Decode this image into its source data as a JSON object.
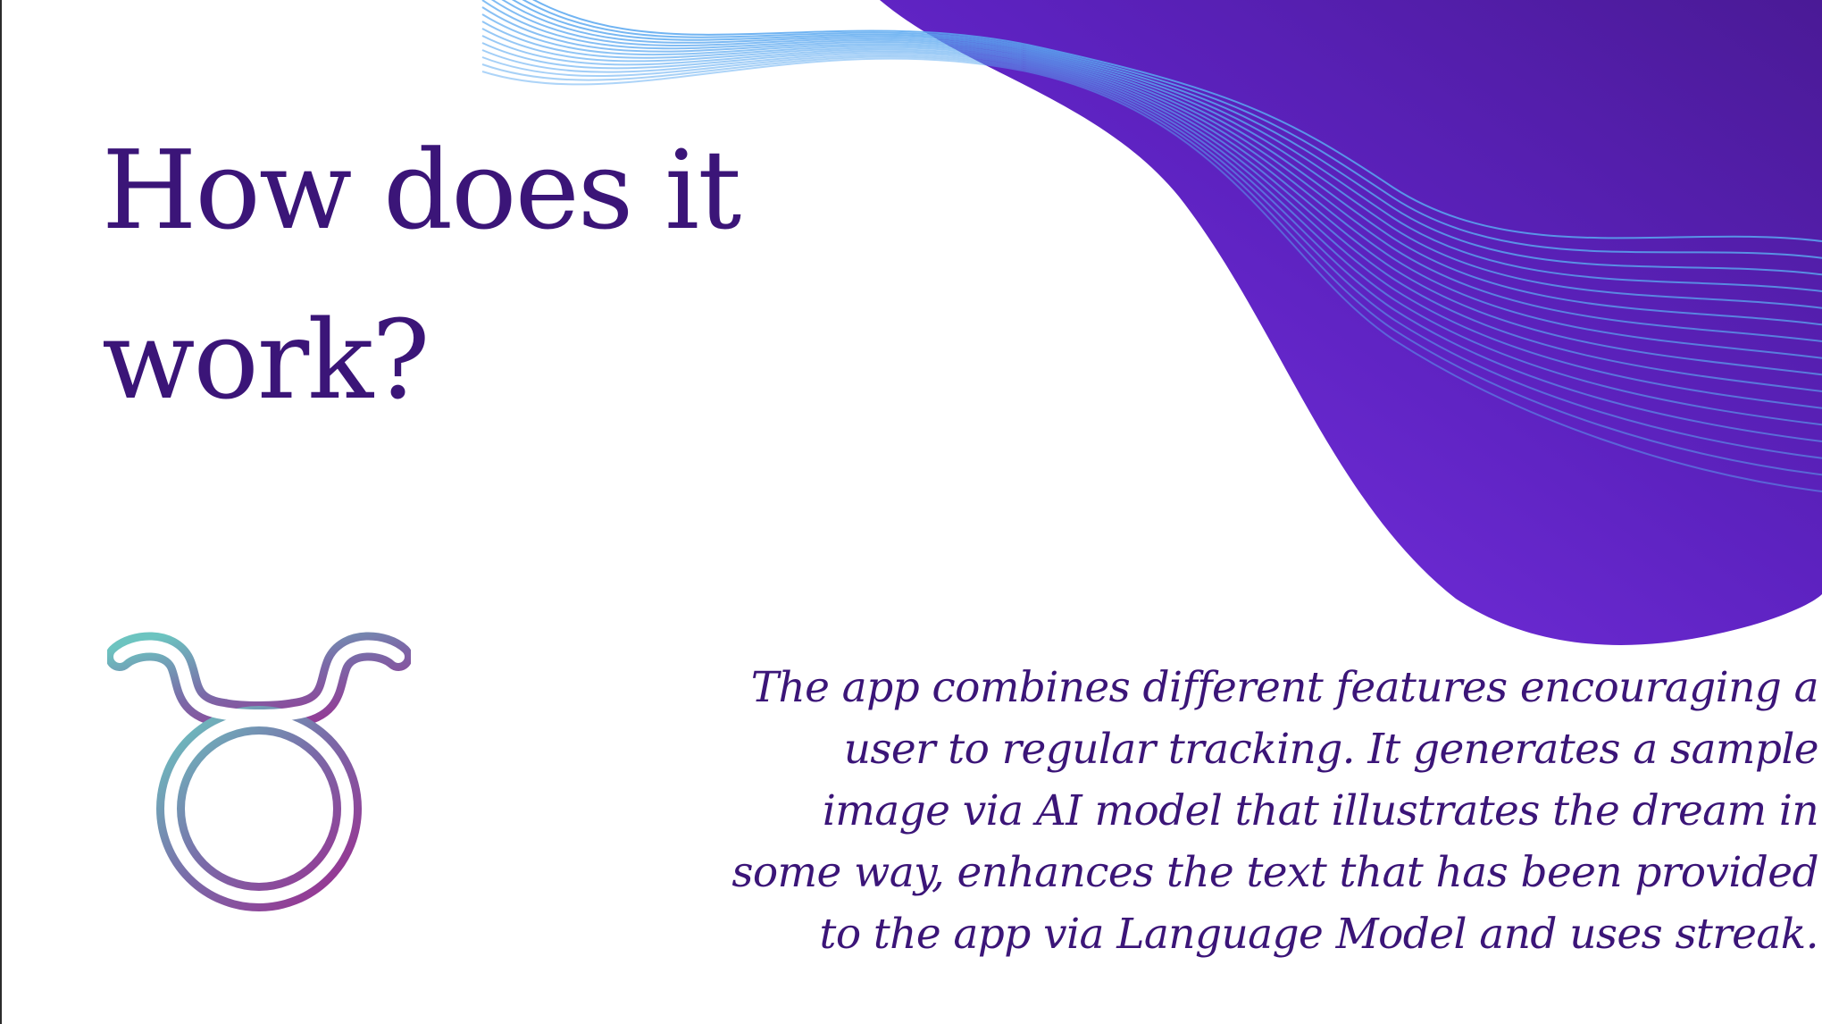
{
  "slide": {
    "title": "How does it work?",
    "description": "The app combines different features encouraging a user to regular tracking. It generates a sample image via AI model that illustrates the dream in some way, enhances the text that has been provided to the app via Language Model and uses streak.",
    "icon": "taurus-zodiac-icon"
  },
  "colors": {
    "title_text": "#3b1578",
    "body_text": "#3b1578",
    "wave_gradient_start": "#7b33e6",
    "wave_gradient_end": "#4a1a96",
    "wave_lines": "#5aa8f0",
    "icon_gradient_start": "#6cc4c0",
    "icon_gradient_end": "#9a2f90"
  }
}
